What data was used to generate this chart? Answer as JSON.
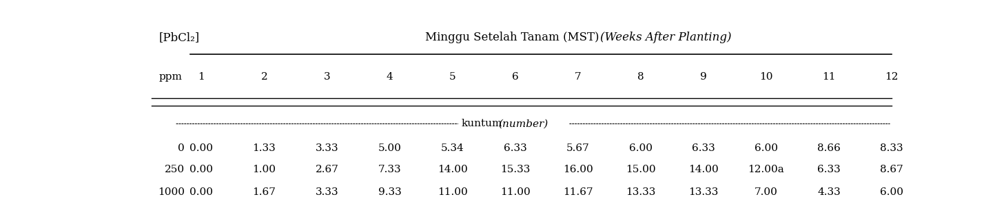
{
  "header_left": "[PbCl₂]",
  "header_center": "Minggu Setelah Tanam (MST)",
  "header_center_italic": "(Weeks After Planting)",
  "col_header_left": "ppm",
  "week_cols": [
    "1",
    "2",
    "3",
    "4",
    "5",
    "6",
    "7",
    "8",
    "9",
    "10",
    "11",
    "12"
  ],
  "unit_label": "kuntum",
  "unit_label_italic": "(number)",
  "rows": [
    {
      "ppm": "0",
      "vals": [
        "0.00",
        "1.33",
        "3.33",
        "5.00",
        "5.34",
        "6.33",
        "5.67",
        "6.00",
        "6.33",
        "6.00",
        "8.66",
        "8.33"
      ]
    },
    {
      "ppm": "250",
      "vals": [
        "0.00",
        "1.00",
        "2.67",
        "7.33",
        "14.00",
        "15.33",
        "16.00",
        "15.00",
        "14.00",
        "12.00a",
        "6.33",
        "8.67"
      ]
    },
    {
      "ppm": "1000",
      "vals": [
        "0.00",
        "1.67",
        "3.33",
        "9.33",
        "11.00",
        "11.00",
        "11.67",
        "13.33",
        "13.33",
        "7.00",
        "4.33",
        "6.00"
      ]
    }
  ],
  "bg_color": "#ffffff",
  "text_color": "#000000",
  "font_size": 11,
  "title_font_size": 12
}
